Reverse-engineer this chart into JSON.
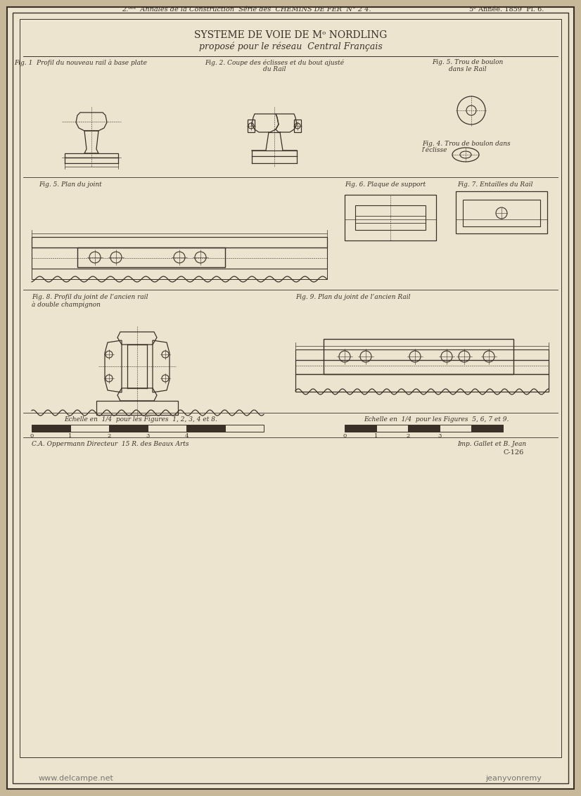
{
  "bg_color": "#c8b89a",
  "paper_color": "#f0e8d8",
  "inner_paper_color": "#ede4d0",
  "line_color": "#3a3028",
  "title_main": "SYSTEME DE VOIE DE Mᵒ NORDLING",
  "title_sub": "proposé pour le réseau  Central Français",
  "header_left": "2.ᵒᵉˢ  Annales de la Construction  Série des  CHEMINS DE FER  N° 2 4.",
  "header_right": "5ᵉ Année. 1859  Pl. 6.",
  "fig1_label": "Fig. 1  Profil du nouveau rail à base plate",
  "fig2_label": "Fig. 2. Coupe des éclisses et du bout ajusté",
  "fig2_label2": "du Rail",
  "fig3_label": "Fig. 5. Trou de boulon",
  "fig3_label2": "dans le Rail",
  "fig4_label": "Fig. 4. Trou de boulon dans",
  "fig4_label2": "l’éclisse",
  "fig5_label": "Fig. 5. Plan du joint",
  "fig6_label": "Fig. 6. Plaque de support",
  "fig7_label": "Fig. 7. Entailles du Rail",
  "fig8_label": "Fig. 8. Profil du joint de l’ancien rail",
  "fig8_label2": "à double champignon",
  "fig9_label": "Fig. 9. Plan du joint de l’ancien Rail",
  "footer_left": "C.A. Oppermann Directeur  15 R. des Beaux Arts",
  "footer_right": "Imp. Gallet et B. Jean",
  "footer_code": "C-126",
  "watermark_left": "www.delcampe.net",
  "watermark_right": "jeanyvonremy"
}
